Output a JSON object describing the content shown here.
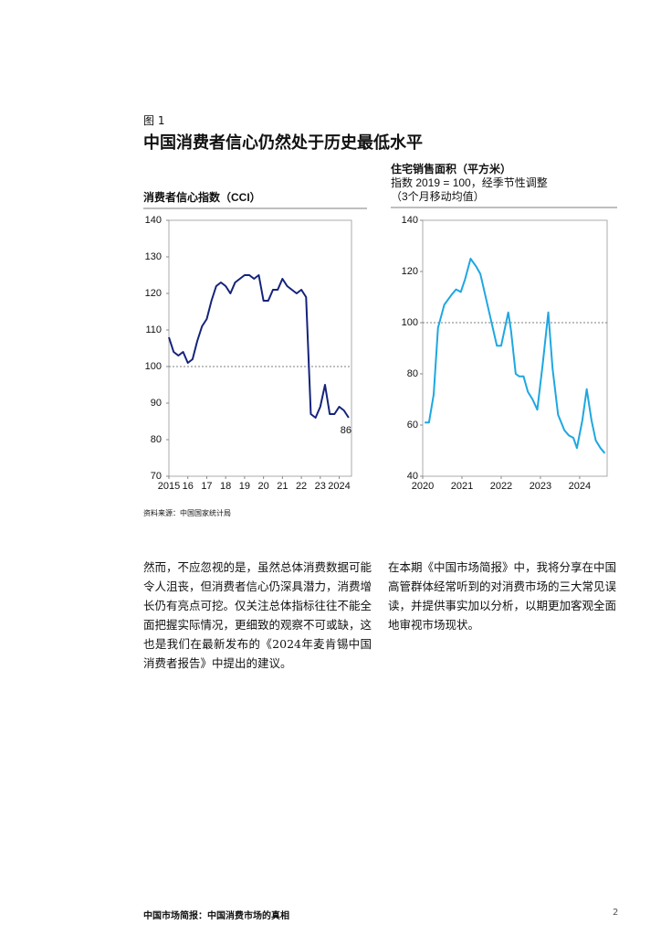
{
  "header": {
    "label": "图 1",
    "title": "中国消费者信心仍然处于历史最低水平"
  },
  "chart_data": [
    {
      "type": "line",
      "title": "消费者信心指数（CCI）",
      "color": "#14237a",
      "x": [
        2015,
        2015.25,
        2015.5,
        2015.75,
        2016,
        2016.25,
        2016.5,
        2016.75,
        2017,
        2017.25,
        2017.5,
        2017.75,
        2018,
        2018.25,
        2018.5,
        2018.75,
        2019,
        2019.25,
        2019.5,
        2019.75,
        2020,
        2020.25,
        2020.5,
        2020.75,
        2021,
        2021.25,
        2021.5,
        2021.75,
        2022,
        2022.25,
        2022.5,
        2022.75,
        2023,
        2023.25,
        2023.5,
        2023.75,
        2024,
        2024.25,
        2024.5
      ],
      "values": [
        108,
        104,
        103,
        104,
        101,
        102,
        107,
        111,
        113,
        118,
        122,
        123,
        122,
        120,
        123,
        124,
        125,
        125,
        124,
        125,
        118,
        118,
        121,
        121,
        124,
        122,
        121,
        120,
        121,
        119,
        87,
        86,
        89,
        95,
        87,
        87,
        89,
        88,
        86
      ],
      "xlim": [
        2015,
        2024.65
      ],
      "ylim": [
        70,
        140
      ],
      "xticks": [
        2015,
        {
          "value": 2016,
          "label": "16"
        },
        {
          "value": 2017,
          "label": "17"
        },
        {
          "value": 2018,
          "label": "18"
        },
        {
          "value": 2019,
          "label": "19"
        },
        {
          "value": 2020,
          "label": "20"
        },
        {
          "value": 2021,
          "label": "21"
        },
        {
          "value": 2022,
          "label": "22"
        },
        {
          "value": 2023,
          "label": "23"
        },
        2024
      ],
      "yticks": [
        70,
        80,
        90,
        100,
        110,
        120,
        130,
        140
      ],
      "reference_line": 100,
      "annotation": 86
    },
    {
      "type": "line",
      "title": "住宅销售面积（平方米）",
      "subtitle": [
        "指数 2019 = 100，经季节性调整",
        "（3个月移动均值）"
      ],
      "color": "#1ea7e1",
      "x": [
        2020.05,
        2020.16,
        2020.28,
        2020.39,
        2020.55,
        2020.74,
        2020.85,
        2020.97,
        2021.08,
        2021.22,
        2021.36,
        2021.47,
        2021.59,
        2021.77,
        2021.89,
        2022.0,
        2022.11,
        2022.18,
        2022.25,
        2022.37,
        2022.46,
        2022.57,
        2022.68,
        2022.8,
        2022.92,
        2023.06,
        2023.2,
        2023.31,
        2023.45,
        2023.61,
        2023.72,
        2023.84,
        2023.93,
        2024.07,
        2024.18,
        2024.3,
        2024.41,
        2024.53,
        2024.64
      ],
      "values": [
        61,
        61,
        72,
        98,
        107,
        111,
        113,
        112,
        117,
        125,
        122,
        119,
        111,
        99,
        91,
        91,
        99,
        104,
        97,
        80,
        79,
        79,
        73,
        70,
        66,
        84,
        104,
        82,
        64,
        58,
        56,
        55,
        51,
        62,
        74,
        62,
        54,
        51,
        49
      ],
      "xlim": [
        2020,
        2024.7
      ],
      "ylim": [
        40,
        140
      ],
      "xticks": [
        2020,
        2021,
        2022,
        2023,
        2024
      ],
      "yticks": [
        40,
        60,
        80,
        100,
        120,
        140
      ],
      "reference_line": 100
    }
  ],
  "source": "资料来源：中国国家统计局",
  "body": [
    "然而，不应忽视的是，虽然总体消费数据可能令人沮丧，但消费者信心仍深具潜力，消费增长仍有亮点可挖。仅关注总体指标往往不能全面把握实际情况，更细致的观察不可或缺，这也是我们在最新发布的《2024年麦肯锡中国消费者报告》中提出的建议。",
    "在本期《中国市场简报》中，我将分享在中国高管群体经常听到的对消费市场的三大常见误读，并提供事实加以分析，以期更加客观全面地审视市场现状。"
  ],
  "footer": {
    "text": "中国市场简报：中国消费市场的真相",
    "page": 2
  }
}
